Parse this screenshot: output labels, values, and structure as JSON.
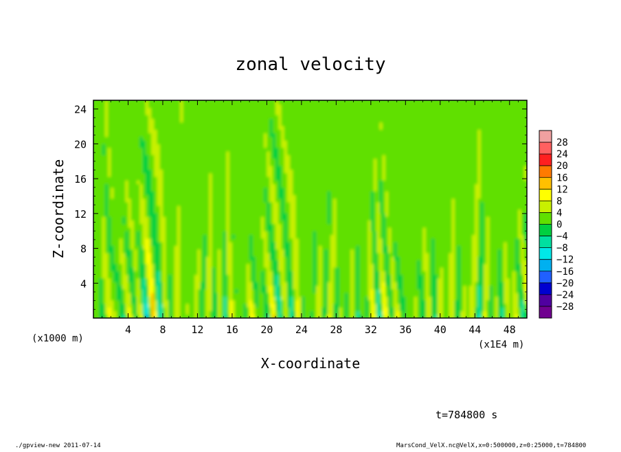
{
  "chart_data": {
    "type": "heatmap",
    "title": "zonal velocity",
    "xlabel": "X-coordinate",
    "ylabel": "Z-coordinate",
    "x_unit_left": "(x1000 m)",
    "x_unit_right": "(x1E4 m)",
    "xlim": [
      0,
      50
    ],
    "ylim": [
      0,
      25
    ],
    "xticks": [
      4,
      8,
      12,
      16,
      20,
      24,
      28,
      32,
      36,
      40,
      44,
      48
    ],
    "yticks": [
      4,
      8,
      12,
      16,
      20,
      24
    ],
    "colorbar": {
      "levels": [
        28,
        24,
        20,
        16,
        12,
        8,
        4,
        0,
        -4,
        -8,
        -12,
        -16,
        -20,
        -24,
        -28
      ],
      "labels": [
        "28",
        "24",
        "20",
        "16",
        "12",
        "8",
        "4",
        "0",
        "−4",
        "−8",
        "−12",
        "−16",
        "−20",
        "−24",
        "−28"
      ],
      "colors": [
        "#f0a0a0",
        "#ff6060",
        "#ff2020",
        "#ff7a00",
        "#ffc000",
        "#ffff00",
        "#c8f000",
        "#60e000",
        "#00d040",
        "#00e0a0",
        "#00e8e8",
        "#00b0f0",
        "#2060ff",
        "#0000d0",
        "#5000a0",
        "#700090"
      ]
    },
    "annotation": "t=784800 s"
  },
  "footer": {
    "left": "./gpview-new  2011-07-14",
    "right": "MarsCond_VelX.nc@VelX,x=0:500000,z=0:25000,t=784800"
  }
}
